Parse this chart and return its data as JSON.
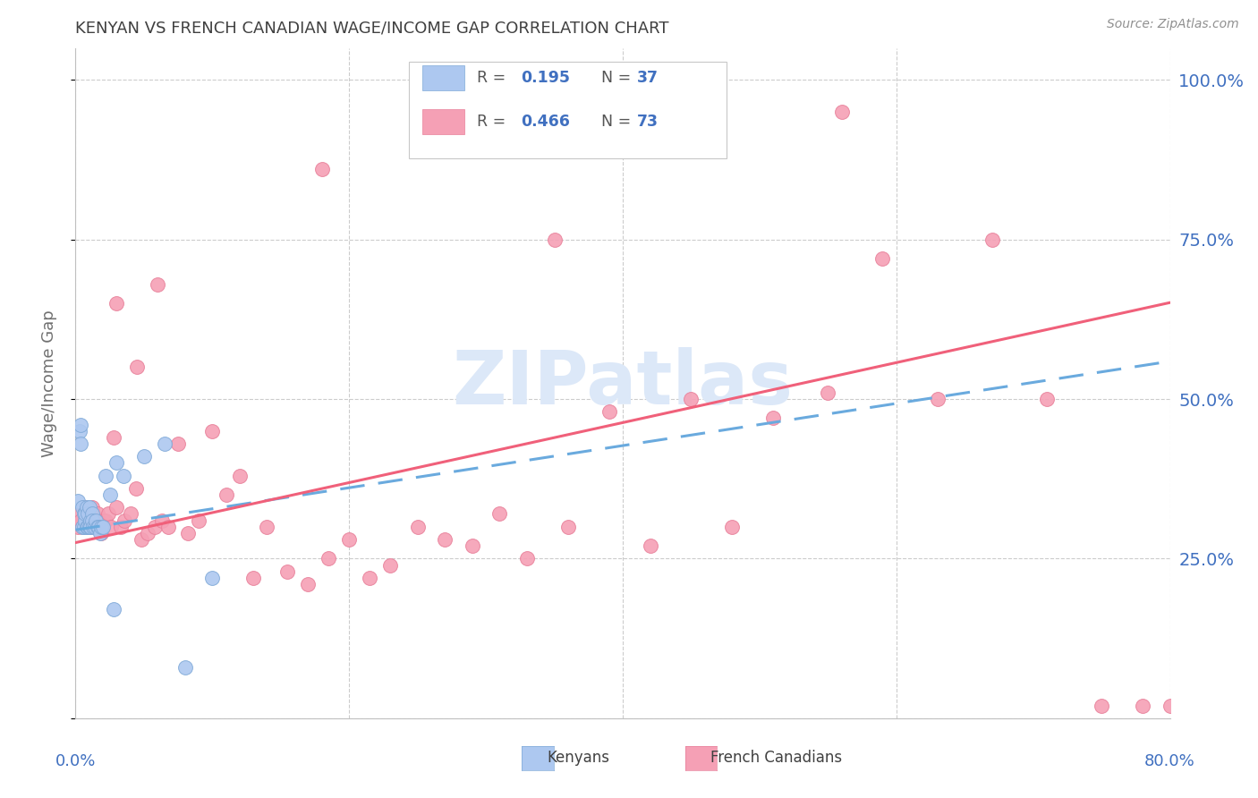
{
  "title": "KENYAN VS FRENCH CANADIAN WAGE/INCOME GAP CORRELATION CHART",
  "source": "Source: ZipAtlas.com",
  "ylabel": "Wage/Income Gap",
  "yticks": [
    0.0,
    0.25,
    0.5,
    0.75,
    1.0
  ],
  "ytick_labels": [
    "",
    "25.0%",
    "50.0%",
    "75.0%",
    "100.0%"
  ],
  "xlim": [
    0.0,
    0.8
  ],
  "ylim": [
    0.0,
    1.05
  ],
  "kenyan_R": 0.195,
  "kenyan_N": 37,
  "french_R": 0.466,
  "french_N": 73,
  "kenyan_color": "#adc8f0",
  "french_color": "#f5a0b5",
  "kenyan_line_color": "#6aaade",
  "french_line_color": "#f0607a",
  "watermark": "ZIPatlas",
  "watermark_color": "#dce8f8",
  "background_color": "#ffffff",
  "title_color": "#404040",
  "axis_label_color": "#4070c0",
  "kenyan_x": [
    0.002,
    0.003,
    0.004,
    0.004,
    0.005,
    0.005,
    0.006,
    0.006,
    0.007,
    0.007,
    0.008,
    0.008,
    0.009,
    0.009,
    0.01,
    0.01,
    0.011,
    0.011,
    0.012,
    0.012,
    0.013,
    0.014,
    0.015,
    0.016,
    0.017,
    0.018,
    0.019,
    0.02,
    0.022,
    0.025,
    0.028,
    0.03,
    0.035,
    0.05,
    0.065,
    0.08,
    0.1
  ],
  "kenyan_y": [
    0.34,
    0.45,
    0.43,
    0.46,
    0.3,
    0.33,
    0.3,
    0.32,
    0.31,
    0.32,
    0.3,
    0.33,
    0.3,
    0.32,
    0.3,
    0.33,
    0.31,
    0.3,
    0.32,
    0.31,
    0.3,
    0.3,
    0.31,
    0.3,
    0.3,
    0.29,
    0.3,
    0.3,
    0.38,
    0.35,
    0.17,
    0.4,
    0.38,
    0.41,
    0.43,
    0.08,
    0.22
  ],
  "french_x": [
    0.002,
    0.003,
    0.004,
    0.005,
    0.006,
    0.007,
    0.008,
    0.009,
    0.01,
    0.011,
    0.012,
    0.013,
    0.014,
    0.015,
    0.016,
    0.017,
    0.018,
    0.019,
    0.02,
    0.021,
    0.022,
    0.024,
    0.026,
    0.028,
    0.03,
    0.033,
    0.036,
    0.04,
    0.044,
    0.048,
    0.053,
    0.058,
    0.063,
    0.068,
    0.075,
    0.082,
    0.09,
    0.1,
    0.11,
    0.12,
    0.13,
    0.14,
    0.155,
    0.17,
    0.185,
    0.2,
    0.215,
    0.23,
    0.25,
    0.27,
    0.29,
    0.31,
    0.33,
    0.36,
    0.39,
    0.42,
    0.45,
    0.48,
    0.51,
    0.55,
    0.59,
    0.63,
    0.67,
    0.71,
    0.75,
    0.78,
    0.8,
    0.03,
    0.045,
    0.06,
    0.18,
    0.35,
    0.56
  ],
  "french_y": [
    0.3,
    0.32,
    0.31,
    0.3,
    0.33,
    0.31,
    0.32,
    0.3,
    0.31,
    0.3,
    0.33,
    0.32,
    0.31,
    0.3,
    0.32,
    0.31,
    0.3,
    0.29,
    0.3,
    0.31,
    0.31,
    0.32,
    0.3,
    0.44,
    0.33,
    0.3,
    0.31,
    0.32,
    0.36,
    0.28,
    0.29,
    0.3,
    0.31,
    0.3,
    0.43,
    0.29,
    0.31,
    0.45,
    0.35,
    0.38,
    0.22,
    0.3,
    0.23,
    0.21,
    0.25,
    0.28,
    0.22,
    0.24,
    0.3,
    0.28,
    0.27,
    0.32,
    0.25,
    0.3,
    0.48,
    0.27,
    0.5,
    0.3,
    0.47,
    0.51,
    0.72,
    0.5,
    0.75,
    0.5,
    0.02,
    0.02,
    0.02,
    0.65,
    0.55,
    0.68,
    0.86,
    0.75,
    0.95
  ],
  "french_intercept": 0.275,
  "french_slope": 0.47,
  "kenyan_intercept": 0.295,
  "kenyan_slope": 0.33,
  "grid_color": "#cccccc",
  "spine_color": "#c0c0c0"
}
